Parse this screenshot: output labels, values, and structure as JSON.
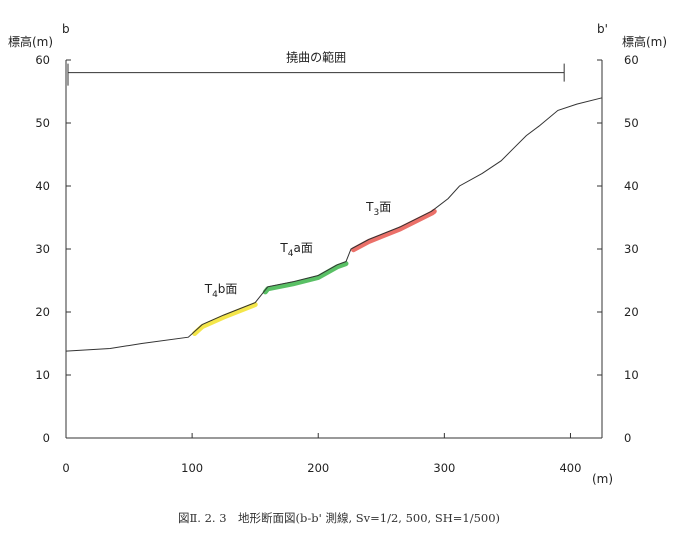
{
  "chart_data": {
    "type": "line",
    "left_axis_label": "標高(m)",
    "right_axis_label": "標高(m)",
    "left_endpoint_label": "b",
    "right_endpoint_label": "b'",
    "x_unit_label": "(m)",
    "xlim": [
      0,
      425
    ],
    "ylim": [
      0,
      60
    ],
    "x_ticks": [
      0,
      100,
      200,
      300,
      400
    ],
    "y_ticks": [
      0,
      10,
      20,
      30,
      40,
      50,
      60
    ],
    "grid": false,
    "profile": [
      [
        0,
        13.8
      ],
      [
        35,
        14.2
      ],
      [
        60,
        15.0
      ],
      [
        97,
        16.0
      ],
      [
        108,
        18.0
      ],
      [
        125,
        19.5
      ],
      [
        150,
        21.5
      ],
      [
        160,
        24.0
      ],
      [
        180,
        24.8
      ],
      [
        200,
        25.8
      ],
      [
        215,
        27.5
      ],
      [
        222,
        28.0
      ],
      [
        226,
        30.0
      ],
      [
        240,
        31.5
      ],
      [
        265,
        33.5
      ],
      [
        290,
        36.0
      ],
      [
        303,
        38.0
      ],
      [
        312,
        40.0
      ],
      [
        330,
        42.0
      ],
      [
        345,
        44.0
      ],
      [
        355,
        46.0
      ],
      [
        365,
        48.0
      ],
      [
        375,
        49.5
      ],
      [
        390,
        52.0
      ],
      [
        405,
        53.0
      ],
      [
        425,
        54.0
      ]
    ],
    "range_bar": {
      "label": "撓曲の範囲",
      "x_start": 0,
      "x_end": 395,
      "y": 58
    },
    "terraces": [
      {
        "label_main": "T",
        "label_sub": "4",
        "label_tail": "b面",
        "x_start": 102,
        "x_end": 150,
        "color": "#f2e22a",
        "label_x": 110,
        "label_y": 23
      },
      {
        "label_main": "T",
        "label_sub": "4",
        "label_tail": "a面",
        "x_start": 158,
        "x_end": 222,
        "color": "#3cb54a",
        "label_x": 170,
        "label_y": 29.5
      },
      {
        "label_main": "T",
        "label_sub": "3",
        "label_tail": "面",
        "x_start": 228,
        "x_end": 292,
        "color": "#e8574f",
        "label_x": 238,
        "label_y": 36
      }
    ]
  },
  "caption": "図Ⅱ. 2. 3　地形断面図(b-b' 測線, Sv=1/2, 500, SH=1/500)"
}
